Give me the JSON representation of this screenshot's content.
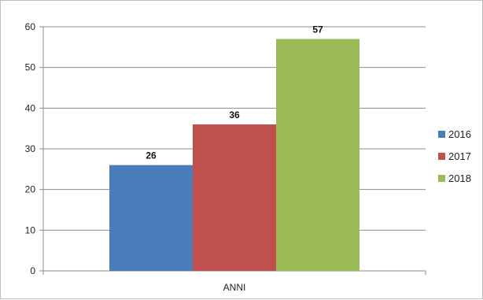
{
  "chart_data": {
    "type": "bar",
    "categories": [
      "ANNI"
    ],
    "series": [
      {
        "name": "2016",
        "values": [
          26
        ],
        "color": "#4a7ebb"
      },
      {
        "name": "2017",
        "values": [
          36
        ],
        "color": "#c0504d"
      },
      {
        "name": "2018",
        "values": [
          57
        ],
        "color": "#9bbb59"
      }
    ],
    "title": "",
    "xlabel": "",
    "ylabel": "",
    "ylim": [
      0,
      60
    ],
    "yticks": [
      0,
      10,
      20,
      30,
      40,
      50,
      60
    ],
    "grid": true,
    "legend_position": "right",
    "data_labels": true
  }
}
